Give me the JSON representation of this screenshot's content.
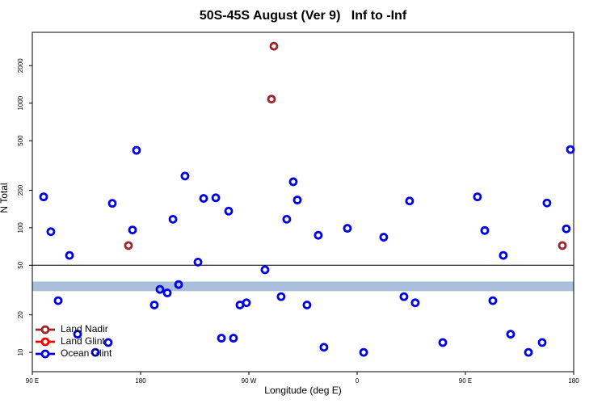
{
  "chart_data": {
    "type": "scatter",
    "title": "50S-45S August (Ver 9)   Inf to -Inf",
    "x_label": "Longitude (deg E)",
    "y_label": "N Total",
    "xlim": [
      90,
      540
    ],
    "xticks": [
      {
        "value": 90,
        "label": "90 E"
      },
      {
        "value": 180,
        "label": "180"
      },
      {
        "value": 270,
        "label": "90 W"
      },
      {
        "value": 360,
        "label": "0"
      },
      {
        "value": 450,
        "label": "90 E"
      },
      {
        "value": 540,
        "label": "180"
      }
    ],
    "ylim": [
      7,
      3700
    ],
    "yticks": [
      10,
      20,
      50,
      100,
      200,
      500,
      1000,
      2000
    ],
    "log_y": true,
    "hline": 50,
    "band": [
      31,
      37
    ],
    "band_color": "#a9bfdc",
    "legend": "lower left",
    "series": [
      {
        "name": "Land Nadir",
        "color": "#a0242c",
        "x": [
          290.8,
          288.8,
          169.9,
          530.6
        ],
        "values": [
          2862,
          1077,
          72,
          72
        ]
      },
      {
        "name": "Land Glint",
        "color": "#ff0000",
        "x": [],
        "values": []
      },
      {
        "name": "Ocean Glint",
        "color": "#0000e6",
        "x": [
          99.4,
          105.4,
          120.9,
          111.5,
          127.6,
          142.4,
          153.1,
          156.5,
          173.3,
          176.6,
          191.4,
          196.1,
          202.2,
          206.9,
          211.6,
          216.9,
          227.7,
          232.4,
          242.5,
          247.2,
          253.2,
          257.2,
          262.6,
          268.0,
          283.4,
          296.8,
          301.5,
          306.9,
          310.3,
          318.3,
          327.7,
          332.4,
          351.9,
          365.4,
          382.1,
          398.9,
          403.6,
          408.3,
          431.2,
          460.0,
          466.1,
          472.8,
          481.5,
          487.6,
          502.4,
          513.8,
          517.8,
          533.9,
          537.3
        ],
        "values": [
          177,
          93,
          60,
          26,
          14,
          10,
          12,
          157,
          96,
          418,
          24,
          32,
          30,
          117,
          35,
          260,
          53,
          172,
          174,
          13,
          136,
          13,
          24,
          25,
          46,
          28,
          117,
          234,
          167,
          24,
          87,
          11,
          99,
          10,
          84,
          28,
          164,
          25,
          12,
          177,
          95,
          26,
          60,
          14,
          10,
          12,
          158,
          98,
          424
        ]
      }
    ]
  }
}
